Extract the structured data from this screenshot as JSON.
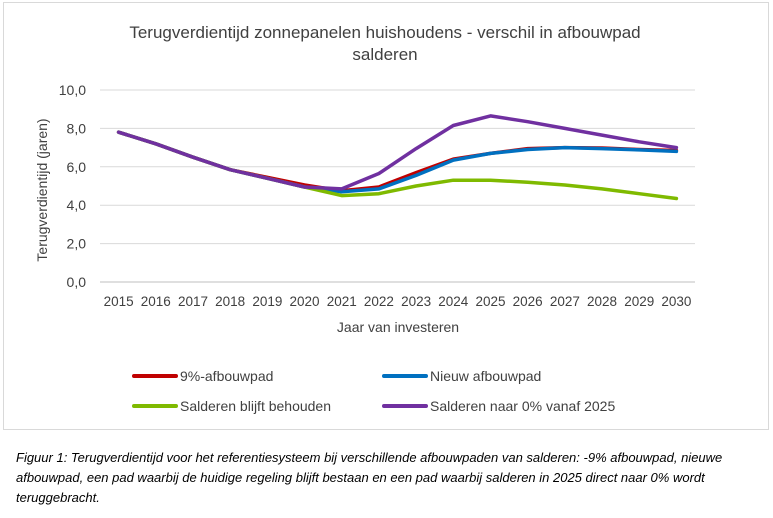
{
  "chart_data": {
    "type": "line",
    "title": "Terugverdientijd zonnepanelen huishoudens - verschil in afbouwpad salderen",
    "title_lines": [
      "Terugverdientijd zonnepanelen huishoudens - verschil in afbouwpad",
      "salderen"
    ],
    "xlabel": "Jaar van investeren",
    "ylabel": "Terugverdientijd (jaren)",
    "ylim": [
      0,
      10
    ],
    "yticks": [
      "0,0",
      "2,0",
      "4,0",
      "6,0",
      "8,0",
      "10,0"
    ],
    "x": [
      "2015",
      "2016",
      "2017",
      "2018",
      "2019",
      "2020",
      "2021",
      "2022",
      "2023",
      "2024",
      "2025",
      "2026",
      "2027",
      "2028",
      "2029",
      "2030"
    ],
    "grid": true,
    "legend_position": "bottom",
    "series": [
      {
        "name": "9%-afbouwpad",
        "color": "#c00000",
        "values": [
          7.8,
          7.2,
          6.5,
          5.85,
          5.45,
          5.05,
          4.75,
          4.95,
          5.7,
          6.4,
          6.7,
          6.95,
          7.0,
          6.98,
          6.9,
          6.85
        ]
      },
      {
        "name": "Nieuw afbouwpad",
        "color": "#0070c0",
        "values": [
          7.8,
          7.2,
          6.5,
          5.85,
          5.4,
          4.95,
          4.7,
          4.85,
          5.55,
          6.35,
          6.7,
          6.9,
          7.0,
          6.95,
          6.88,
          6.8
        ]
      },
      {
        "name": "Salderen blijft behouden",
        "color": "#7fba00",
        "values": [
          7.8,
          7.2,
          6.5,
          5.85,
          5.4,
          4.95,
          4.5,
          4.6,
          5.0,
          5.3,
          5.3,
          5.2,
          5.05,
          4.85,
          4.6,
          4.35
        ]
      },
      {
        "name": "Salderen naar 0% vanaf 2025",
        "color": "#7030a0",
        "values": [
          7.8,
          7.2,
          6.5,
          5.85,
          5.4,
          4.95,
          4.85,
          5.65,
          6.95,
          8.15,
          8.65,
          8.35,
          8.0,
          7.65,
          7.3,
          7.0
        ]
      }
    ]
  },
  "caption": "Figuur 1: Terugverdientijd voor het referentiesysteem bij verschillende afbouwpaden van salderen: -9% afbouwpad, nieuwe afbouwpad, een pad waarbij de huidige regeling blijft bestaan en een pad waarbij salderen in 2025 direct naar 0% wordt teruggebracht.",
  "colors": {
    "grid": "#d9d9d9",
    "axis": "#bfbfbf",
    "text": "#404040"
  }
}
